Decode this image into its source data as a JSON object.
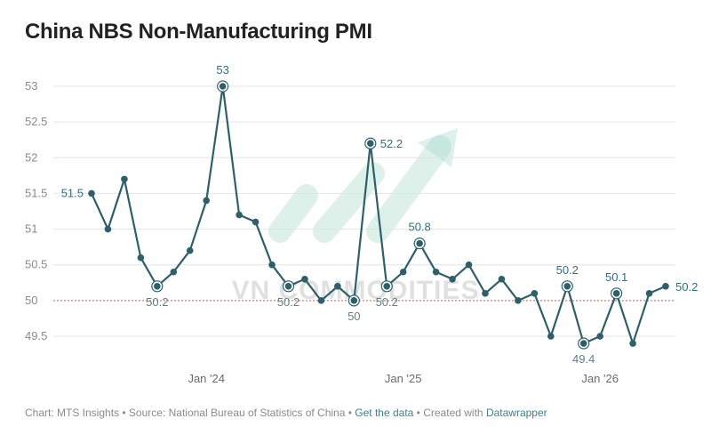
{
  "title": "China NBS Non-Manufacturing PMI",
  "footer": {
    "chart_credit": "Chart: MTS Insights",
    "separator": "•",
    "source": "Source: National Bureau of Statistics of China",
    "get_data": "Get the data",
    "created_with_prefix": "Created with",
    "created_with_tool": "Datawrapper"
  },
  "watermark": "VN COMMODITIES",
  "colors": {
    "line": "#2f5f6a",
    "label": "#2f6f7f",
    "reference": "#e07a6a",
    "watermark": "#9fd5c5"
  },
  "chart_data": {
    "type": "line",
    "title": "China NBS Non-Manufacturing PMI",
    "x": [
      "2023-06",
      "2023-07",
      "2023-08",
      "2023-09",
      "2023-10",
      "2023-11",
      "2023-12",
      "2024-01",
      "2024-02",
      "2024-03",
      "2024-04",
      "2024-05",
      "2024-06",
      "2024-07",
      "2024-08",
      "2024-09",
      "2024-10",
      "2024-11",
      "2024-12",
      "2025-01",
      "2025-02",
      "2025-03",
      "2025-04",
      "2025-05",
      "2025-06",
      "2025-07",
      "2025-08",
      "2025-09",
      "2025-10",
      "2025-11",
      "2025-12",
      "2026-01",
      "2026-02",
      "2026-03",
      "2026-04",
      "2026-05"
    ],
    "series": [
      {
        "values": [
          51.5,
          51.0,
          51.7,
          50.6,
          50.2,
          50.4,
          50.7,
          51.4,
          53.0,
          51.2,
          51.1,
          50.5,
          50.2,
          50.3,
          50.0,
          50.2,
          50.0,
          52.2,
          50.2,
          50.4,
          50.8,
          50.4,
          50.3,
          50.5,
          50.1,
          50.3,
          50.0,
          50.1,
          49.5,
          50.2,
          49.4,
          49.5,
          50.1,
          49.4,
          50.1,
          50.2
        ]
      }
    ],
    "labeled_points": [
      {
        "index": 0,
        "text": "51.5",
        "position": "left"
      },
      {
        "index": 4,
        "text": "50.2",
        "position": "below"
      },
      {
        "index": 8,
        "text": "53",
        "position": "above"
      },
      {
        "index": 12,
        "text": "50.2",
        "position": "below"
      },
      {
        "index": 16,
        "text": "50",
        "position": "below"
      },
      {
        "index": 17,
        "text": "52.2",
        "position": "right"
      },
      {
        "index": 18,
        "text": "50.2",
        "position": "below"
      },
      {
        "index": 20,
        "text": "50.8",
        "position": "above"
      },
      {
        "index": 29,
        "text": "50.2",
        "position": "above"
      },
      {
        "index": 30,
        "text": "49.4",
        "position": "below"
      },
      {
        "index": 32,
        "text": "50.1",
        "position": "above"
      },
      {
        "index": 35,
        "text": "50.2",
        "position": "right"
      }
    ],
    "x_ticks": [
      {
        "index": 7,
        "label": "Jan '24"
      },
      {
        "index": 19,
        "label": "Jan '25"
      },
      {
        "index": 31,
        "label": "Jan '26"
      }
    ],
    "y_ticks": [
      "53",
      "52.5",
      "52",
      "51.5",
      "51",
      "50.5",
      "50",
      "49.5"
    ],
    "ylim": [
      49.5,
      53
    ],
    "reference_line": 50,
    "grid": true,
    "legend": "none"
  }
}
